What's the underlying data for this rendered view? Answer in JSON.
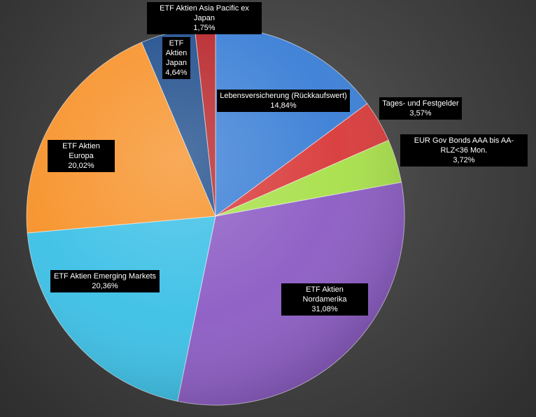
{
  "chart_data": {
    "type": "pie",
    "title": "",
    "start_angle_deg": 0,
    "direction": "clockwise",
    "series": [
      {
        "name": "Lebensversicherung (Rückkaufswert)",
        "value": 14.84,
        "label": "14,84%",
        "color": "#3b7fd6"
      },
      {
        "name": "Tages- und Festgelder",
        "value": 3.57,
        "label": "3,57%",
        "color": "#d93a3a"
      },
      {
        "name": "EUR Gov Bonds AAA bis AA- RLZ<36 Mon.",
        "value": 3.72,
        "label": "3,72%",
        "color": "#a8e04a"
      },
      {
        "name": "ETF Aktien Nordamerika",
        "value": 31.08,
        "label": "31,08%",
        "color": "#8c5cc4"
      },
      {
        "name": "ETF Aktien Emerging Markets",
        "value": 20.36,
        "label": "20,36%",
        "color": "#3cc0e6"
      },
      {
        "name": "ETF Aktien Europa",
        "value": 20.02,
        "label": "20,02%",
        "color": "#f7922a"
      },
      {
        "name": "ETF Aktien Japan",
        "value": 4.64,
        "label": "4,64%",
        "color": "#1f4e8c"
      },
      {
        "name": "ETF Aktien Asia Pacific ex Japan",
        "value": 1.75,
        "label": "1,75%",
        "color": "#b8262a"
      }
    ]
  }
}
